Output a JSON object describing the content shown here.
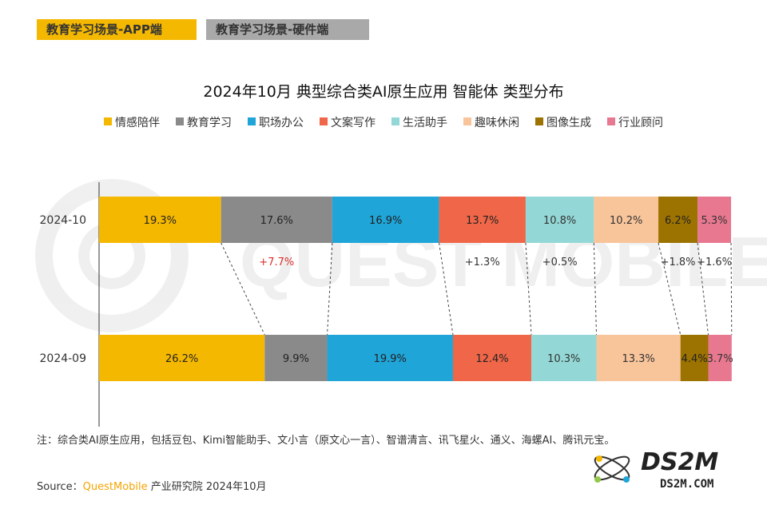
{
  "tabs": [
    {
      "label": "教育学习场景-APP端",
      "active": true
    },
    {
      "label": "教育学习场景-硬件端",
      "active": false
    }
  ],
  "colors": {
    "tab_active": "#f5b800",
    "tab_inactive": "#a9a9a9",
    "positive_change": "#d9302c",
    "neutral_change": "#333333"
  },
  "chart_data": {
    "type": "bar",
    "orientation": "horizontal-stacked-100",
    "title": "2024年10月 典型综合类AI原生应用 智能体 类型分布",
    "categories": [
      "2024-10",
      "2024-09"
    ],
    "series": [
      {
        "name": "情感陪伴",
        "color": "#f5b800",
        "values": [
          19.3,
          26.2
        ]
      },
      {
        "name": "教育学习",
        "color": "#8a8a8a",
        "values": [
          17.6,
          9.9
        ]
      },
      {
        "name": "职场办公",
        "color": "#1fa5d8",
        "values": [
          16.9,
          19.9
        ]
      },
      {
        "name": "文案写作",
        "color": "#ef6648",
        "values": [
          13.7,
          12.4
        ]
      },
      {
        "name": "生活助手",
        "color": "#93d8d6",
        "values": [
          10.8,
          10.3
        ]
      },
      {
        "name": "趣味休闲",
        "color": "#f8c49a",
        "values": [
          10.2,
          13.3
        ]
      },
      {
        "name": "图像生成",
        "color": "#9c7200",
        "values": [
          6.2,
          4.4
        ]
      },
      {
        "name": "行业顾问",
        "color": "#e8788f",
        "values": [
          5.3,
          3.7
        ]
      }
    ],
    "value_labels": [
      [
        "19.3%",
        "17.6%",
        "16.9%",
        "13.7%",
        "10.8%",
        "10.2%",
        "6.2%",
        "5.3%"
      ],
      [
        "26.2%",
        "9.9%",
        "19.9%",
        "12.4%",
        "10.3%",
        "13.3%",
        "4.4%",
        "3.7%"
      ]
    ],
    "change_annotations": [
      {
        "series": "教育学习",
        "text": "+7.7%",
        "highlight": true
      },
      {
        "series": "文案写作",
        "text": "+1.3%",
        "highlight": false
      },
      {
        "series": "生活助手",
        "text": "+0.5%",
        "highlight": false
      },
      {
        "series": "图像生成",
        "text": "+1.8%",
        "highlight": false
      },
      {
        "series": "行业顾问",
        "text": "+1.6%",
        "highlight": false
      }
    ],
    "legend_position": "top",
    "xlim": [
      0,
      100
    ],
    "grid": false
  },
  "footer": {
    "note": "注：综合类AI原生应用，包括豆包、Kimi智能助手、文小言（原文心一言）、智谱清言、讯飞星火、通义、海螺AI、腾讯元宝。",
    "source_prefix": "Source：",
    "source_brand": "QuestMobile",
    "source_suffix": " 产业研究院 2024年10月"
  },
  "watermarks": {
    "background": "QUEST MOBILE",
    "logo_main": "DS2M",
    "logo_sub": "DS2M.COM"
  }
}
